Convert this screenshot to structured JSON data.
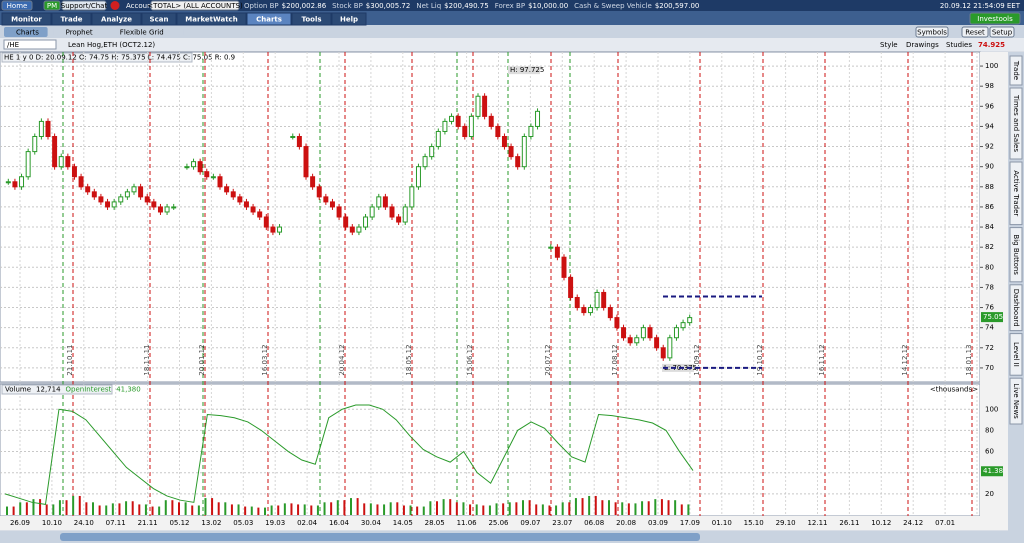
{
  "top_bar": {
    "home": "Home",
    "pm": "PM",
    "support": "Support/Chat",
    "account_label": "Account",
    "account": "<TOTAL> (ALL ACCOUNTS)",
    "balances": [
      {
        "label": "Option BP",
        "value": "$200,002.86"
      },
      {
        "label": "Stock BP",
        "value": "$300,005.72"
      },
      {
        "label": "Net Liq",
        "value": "$200,490.75"
      },
      {
        "label": "Forex BP",
        "value": "$10,000.00"
      },
      {
        "label": "Cash & Sweep Vehicle",
        "value": "$200,597.00"
      }
    ],
    "clock": "20.09.12 21:54:09 EET"
  },
  "tabs": [
    "Monitor",
    "Trade",
    "Analyze",
    "Scan",
    "MarketWatch",
    "Charts",
    "Tools",
    "Help"
  ],
  "brand": "Investools",
  "subtabs": [
    "Charts",
    "Prophet",
    "Flexible Grid"
  ],
  "toolbar_buttons": [
    "Symbols",
    "Reset",
    "Setup"
  ],
  "symbol": "/HE",
  "description": "Lean Hog,ETH (OCT2.12)",
  "chart_tools": [
    "Style",
    "Drawings",
    "Studies"
  ],
  "last_price": "74.925",
  "price_chart": {
    "info": "HE 1 y 0 D: 20.09.12 O: 74.75 H: 75.375 L: 74.475 C: 75.05 R: 0.9",
    "ylim": [
      68.7,
      101.1
    ],
    "yticks": [
      70,
      72,
      74,
      76,
      78,
      80,
      82,
      84,
      86,
      88,
      90,
      92,
      94,
      96,
      98,
      100
    ],
    "closes": [
      88.5,
      88,
      89,
      91.5,
      93,
      94.5,
      93,
      90,
      91,
      90,
      89,
      88,
      87.5,
      87,
      86.5,
      86,
      86.5,
      87,
      87.5,
      88,
      87,
      86.5,
      86,
      85.5,
      86,
      86,
      null,
      90,
      90.5,
      89.5,
      89,
      89,
      88,
      87.5,
      87,
      86.5,
      86,
      85.5,
      85,
      84,
      83.5,
      84,
      null,
      93,
      92,
      89,
      88,
      87,
      86.5,
      86,
      85,
      84,
      83.5,
      84,
      85,
      86,
      87,
      86,
      85,
      84.5,
      86,
      88,
      90,
      91,
      92,
      93.5,
      94.5,
      95,
      94,
      93,
      95,
      97,
      95,
      94,
      93,
      92,
      91,
      90,
      93,
      94,
      95.5,
      null,
      82,
      81,
      79,
      77,
      76,
      75.5,
      76,
      77.5,
      76,
      75,
      74,
      73,
      72.5,
      73,
      74,
      73,
      72,
      71,
      73,
      74,
      74.5,
      75
    ],
    "up_color": "#2a9a2a",
    "down_color": "#cc1111",
    "high_label": "H: 97.725",
    "low_label": "L: 70.375",
    "last_close": 75.05,
    "levels": [
      77.1,
      70
    ],
    "expiry_labels": [
      "21.10.11",
      "18.11.11",
      "20.01.12",
      "16.03.12",
      "20.04.12",
      "18.05.12",
      "15.06.12",
      "20.07.12",
      "17.08.12",
      "14.09.12",
      "19.10.12",
      "16.11.12",
      "14.12.12",
      "18.01.13"
    ]
  },
  "volume_chart": {
    "title": "Volume",
    "volume": "12,714",
    "oi_title": "OpenInterest",
    "oi": "41,380",
    "units": "<thousands>",
    "ylim": [
      0,
      122
    ],
    "yticks": [
      20,
      40,
      60,
      80,
      100
    ],
    "oi_last": 41.38,
    "oi_color": "#2a9a2a",
    "open_interest": [
      20,
      16,
      12,
      10,
      100,
      98,
      90,
      75,
      60,
      45,
      35,
      25,
      18,
      14,
      12,
      95,
      94,
      92,
      88,
      80,
      70,
      60,
      52,
      48,
      92,
      100,
      104,
      104,
      100,
      90,
      75,
      62,
      55,
      50,
      60,
      40,
      30,
      55,
      80,
      88,
      82,
      68,
      55,
      50,
      95,
      94,
      92,
      90,
      87,
      80,
      60,
      42
    ],
    "volume_values": [
      8,
      12,
      15,
      10,
      14,
      18,
      12,
      9,
      11,
      13,
      10,
      8,
      14,
      12,
      9,
      16,
      12,
      10,
      8,
      7,
      9,
      11,
      10,
      9,
      12,
      14,
      16,
      11,
      10,
      12,
      9,
      8,
      13,
      15,
      12,
      10,
      9,
      11,
      12,
      14,
      10,
      9,
      12,
      16,
      18,
      14,
      12,
      11,
      13,
      15,
      14,
      10
    ]
  },
  "x_labels": [
    "26.09",
    "10.10",
    "24.10",
    "07.11",
    "21.11",
    "05.12",
    "13.02",
    "05.03",
    "19.03",
    "02.04",
    "16.04",
    "30.04",
    "14.05",
    "28.05",
    "11.06",
    "25.06",
    "09.07",
    "23.07",
    "06.08",
    "20.08",
    "03.09",
    "17.09",
    "01.10",
    "15.10",
    "29.10",
    "12.11",
    "26.11",
    "10.12",
    "24.12",
    "07.01"
  ],
  "side_tabs": [
    "Trade",
    "Times and Sales",
    "Active Trader",
    "Big Buttons",
    "Dashboard",
    "Level II",
    "Live News"
  ]
}
